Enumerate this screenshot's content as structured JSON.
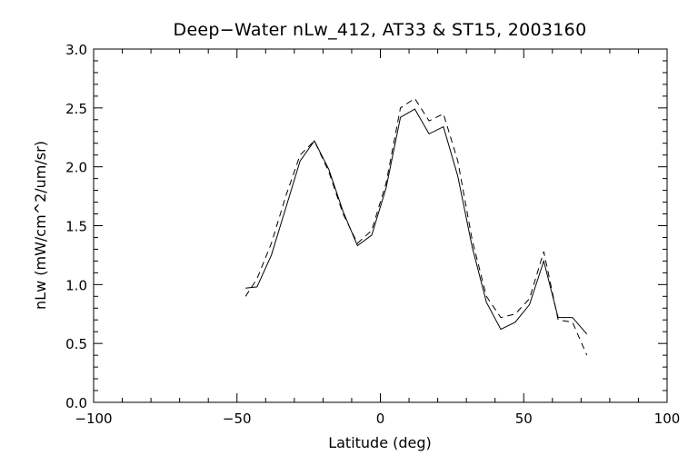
{
  "chart_data": {
    "type": "line",
    "title": "Deep−Water nLw_412, AT33 & ST15, 2003160",
    "xlabel": "Latitude (deg)",
    "ylabel": "nLw (mW/cm^2/um/sr)",
    "xlim": [
      -100,
      100
    ],
    "ylim": [
      0.0,
      3.0
    ],
    "xticks": [
      -100,
      -50,
      0,
      50,
      100
    ],
    "xtick_labels": [
      "−100",
      "−50",
      "0",
      "50",
      "100"
    ],
    "yticks": [
      0.0,
      0.5,
      1.0,
      1.5,
      2.0,
      2.5,
      3.0
    ],
    "ytick_labels": [
      "0.0",
      "0.5",
      "1.0",
      "1.5",
      "2.0",
      "2.5",
      "3.0"
    ],
    "grid": false,
    "legend": false,
    "series": [
      {
        "style": "solid",
        "x": [
          -47,
          -43,
          -38,
          -33,
          -28,
          -23,
          -18,
          -13,
          -8,
          -3,
          2,
          7,
          12,
          17,
          22,
          27,
          32,
          37,
          42,
          47,
          52,
          57,
          62,
          67,
          72
        ],
        "y": [
          0.97,
          0.98,
          1.25,
          1.65,
          2.05,
          2.22,
          1.98,
          1.62,
          1.33,
          1.42,
          1.82,
          2.42,
          2.49,
          2.28,
          2.34,
          1.92,
          1.32,
          0.85,
          0.62,
          0.68,
          0.83,
          1.2,
          0.72,
          0.72,
          0.58
        ]
      },
      {
        "style": "dashed",
        "x": [
          -47,
          -43,
          -38,
          -33,
          -28,
          -23,
          -18,
          -13,
          -8,
          -3,
          2,
          7,
          12,
          17,
          22,
          27,
          32,
          37,
          42,
          47,
          52,
          57,
          62,
          67,
          72
        ],
        "y": [
          0.9,
          1.05,
          1.35,
          1.75,
          2.1,
          2.22,
          1.96,
          1.6,
          1.35,
          1.46,
          1.86,
          2.5,
          2.58,
          2.39,
          2.45,
          2.05,
          1.38,
          0.9,
          0.72,
          0.75,
          0.88,
          1.28,
          0.7,
          0.68,
          0.4
        ]
      }
    ]
  }
}
